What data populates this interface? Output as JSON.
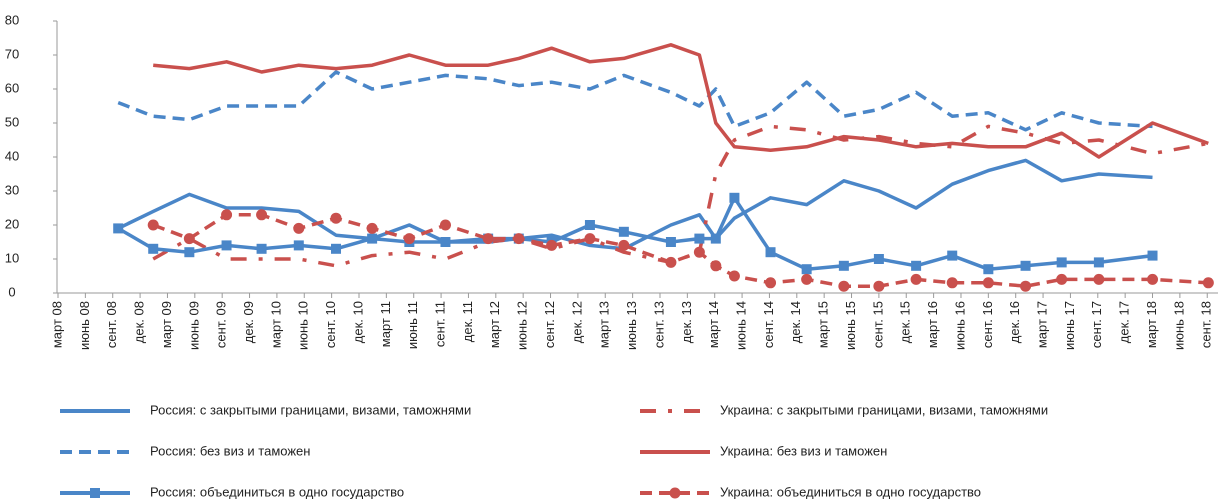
{
  "chart_data": {
    "type": "line",
    "x": [
      2008.55,
      2008.87,
      2009.2,
      2009.54,
      2009.86,
      2010.2,
      2010.54,
      2010.87,
      2011.21,
      2011.54,
      2011.93,
      2012.21,
      2012.51,
      2012.86,
      2013.17,
      2013.6,
      2013.86,
      2014.01,
      2014.18,
      2014.51,
      2014.84,
      2015.18,
      2015.5,
      2015.84,
      2016.17,
      2016.5,
      2016.84,
      2017.17,
      2017.51,
      2018.0,
      2018.51
    ],
    "series": [
      {
        "name": "Россия: с закрытыми границами, визами, таможнями",
        "color": "#4a86c8",
        "style": "solid",
        "values": [
          19,
          24,
          29,
          25,
          25,
          24,
          17,
          16,
          20,
          15,
          15,
          16,
          17,
          14,
          13,
          20,
          23,
          16,
          22,
          28,
          26,
          33,
          30,
          25,
          32,
          36,
          39,
          33,
          35,
          34,
          null
        ]
      },
      {
        "name": "Украина:  с закрытыми границами, визами, таможнями",
        "color": "#c9504d",
        "style": "dashdot",
        "values": [
          null,
          10,
          16,
          10,
          10,
          10,
          8,
          11,
          12,
          10,
          15,
          16,
          13,
          16,
          12,
          9,
          12,
          35,
          45,
          49,
          48,
          45,
          46,
          44,
          43,
          49,
          47,
          44,
          45,
          41,
          44
        ]
      },
      {
        "name": "Россия: без виз и таможен",
        "color": "#4a86c8",
        "style": "dash",
        "values": [
          56,
          52,
          51,
          55,
          55,
          55,
          65,
          60,
          62,
          64,
          63,
          61,
          62,
          60,
          64,
          59,
          55,
          60,
          49,
          53,
          62,
          52,
          54,
          59,
          52,
          53,
          48,
          53,
          50,
          49,
          null
        ]
      },
      {
        "name": "Украина: без виз и таможен",
        "color": "#c9504d",
        "style": "solid",
        "values": [
          null,
          67,
          66,
          68,
          65,
          67,
          66,
          67,
          70,
          67,
          67,
          69,
          72,
          68,
          69,
          73,
          70,
          50,
          43,
          42,
          43,
          46,
          45,
          43,
          44,
          43,
          43,
          47,
          40,
          50,
          44
        ]
      },
      {
        "name": "Россия: объединиться в одно государство",
        "color": "#4a86c8",
        "style": "solid",
        "marker": "square",
        "values": [
          19,
          13,
          12,
          14,
          13,
          14,
          13,
          16,
          15,
          15,
          16,
          16,
          15,
          20,
          18,
          15,
          16,
          16,
          28,
          12,
          7,
          8,
          10,
          8,
          11,
          7,
          8,
          9,
          9,
          11,
          null
        ]
      },
      {
        "name": "Украина: объединиться в одно государство",
        "color": "#c9504d",
        "style": "dash",
        "marker": "circle",
        "values": [
          null,
          20,
          16,
          23,
          23,
          19,
          22,
          19,
          16,
          20,
          16,
          16,
          14,
          16,
          14,
          9,
          12,
          8,
          5,
          3,
          4,
          2,
          2,
          4,
          3,
          3,
          2,
          4,
          4,
          4,
          3
        ]
      }
    ],
    "xlim": [
      2008,
      2018.58
    ],
    "xticks": [
      {
        "value": 2008,
        "label": "март 08"
      },
      {
        "value": 2008.25,
        "label": "июнь 08"
      },
      {
        "value": 2008.5,
        "label": "сент. 08"
      },
      {
        "value": 2008.75,
        "label": "дек. 08"
      },
      {
        "value": 2009,
        "label": "март 09"
      },
      {
        "value": 2009.25,
        "label": "июнь 09"
      },
      {
        "value": 2009.5,
        "label": "сент. 09"
      },
      {
        "value": 2009.75,
        "label": "дек. 09"
      },
      {
        "value": 2010,
        "label": "март 10"
      },
      {
        "value": 2010.25,
        "label": "июнь 10"
      },
      {
        "value": 2010.5,
        "label": "сент. 10"
      },
      {
        "value": 2010.75,
        "label": "дек. 10"
      },
      {
        "value": 2011,
        "label": "март 11"
      },
      {
        "value": 2011.25,
        "label": "июнь 11"
      },
      {
        "value": 2011.5,
        "label": "сент. 11"
      },
      {
        "value": 2011.75,
        "label": "дек. 11"
      },
      {
        "value": 2012,
        "label": "март 12"
      },
      {
        "value": 2012.25,
        "label": "июнь 12"
      },
      {
        "value": 2012.5,
        "label": "сент. 12"
      },
      {
        "value": 2012.75,
        "label": "дек. 12"
      },
      {
        "value": 2013,
        "label": "март 13"
      },
      {
        "value": 2013.25,
        "label": "июнь 13"
      },
      {
        "value": 2013.5,
        "label": "сент. 13"
      },
      {
        "value": 2013.75,
        "label": "дек. 13"
      },
      {
        "value": 2014,
        "label": "март 14"
      },
      {
        "value": 2014.25,
        "label": "июнь 14"
      },
      {
        "value": 2014.5,
        "label": "сент. 14"
      },
      {
        "value": 2014.75,
        "label": "дек. 14"
      },
      {
        "value": 2015,
        "label": "март 15"
      },
      {
        "value": 2015.25,
        "label": "июнь 15"
      },
      {
        "value": 2015.5,
        "label": "сент. 15"
      },
      {
        "value": 2015.75,
        "label": "дек. 15"
      },
      {
        "value": 2016,
        "label": "март 16"
      },
      {
        "value": 2016.25,
        "label": "июнь 16"
      },
      {
        "value": 2016.5,
        "label": "сент. 16"
      },
      {
        "value": 2016.75,
        "label": "дек. 16"
      },
      {
        "value": 2017,
        "label": "март 17"
      },
      {
        "value": 2017.25,
        "label": "июнь 17"
      },
      {
        "value": 2017.5,
        "label": "сент. 17"
      },
      {
        "value": 2017.75,
        "label": "дек. 17"
      },
      {
        "value": 2018,
        "label": "март 18"
      },
      {
        "value": 2018.25,
        "label": "июнь 18"
      },
      {
        "value": 2018.5,
        "label": "сент. 18"
      }
    ],
    "ylim": [
      0,
      80
    ],
    "yticks": [
      0,
      10,
      20,
      30,
      40,
      50,
      60,
      70,
      80
    ],
    "legend": "bottom"
  }
}
